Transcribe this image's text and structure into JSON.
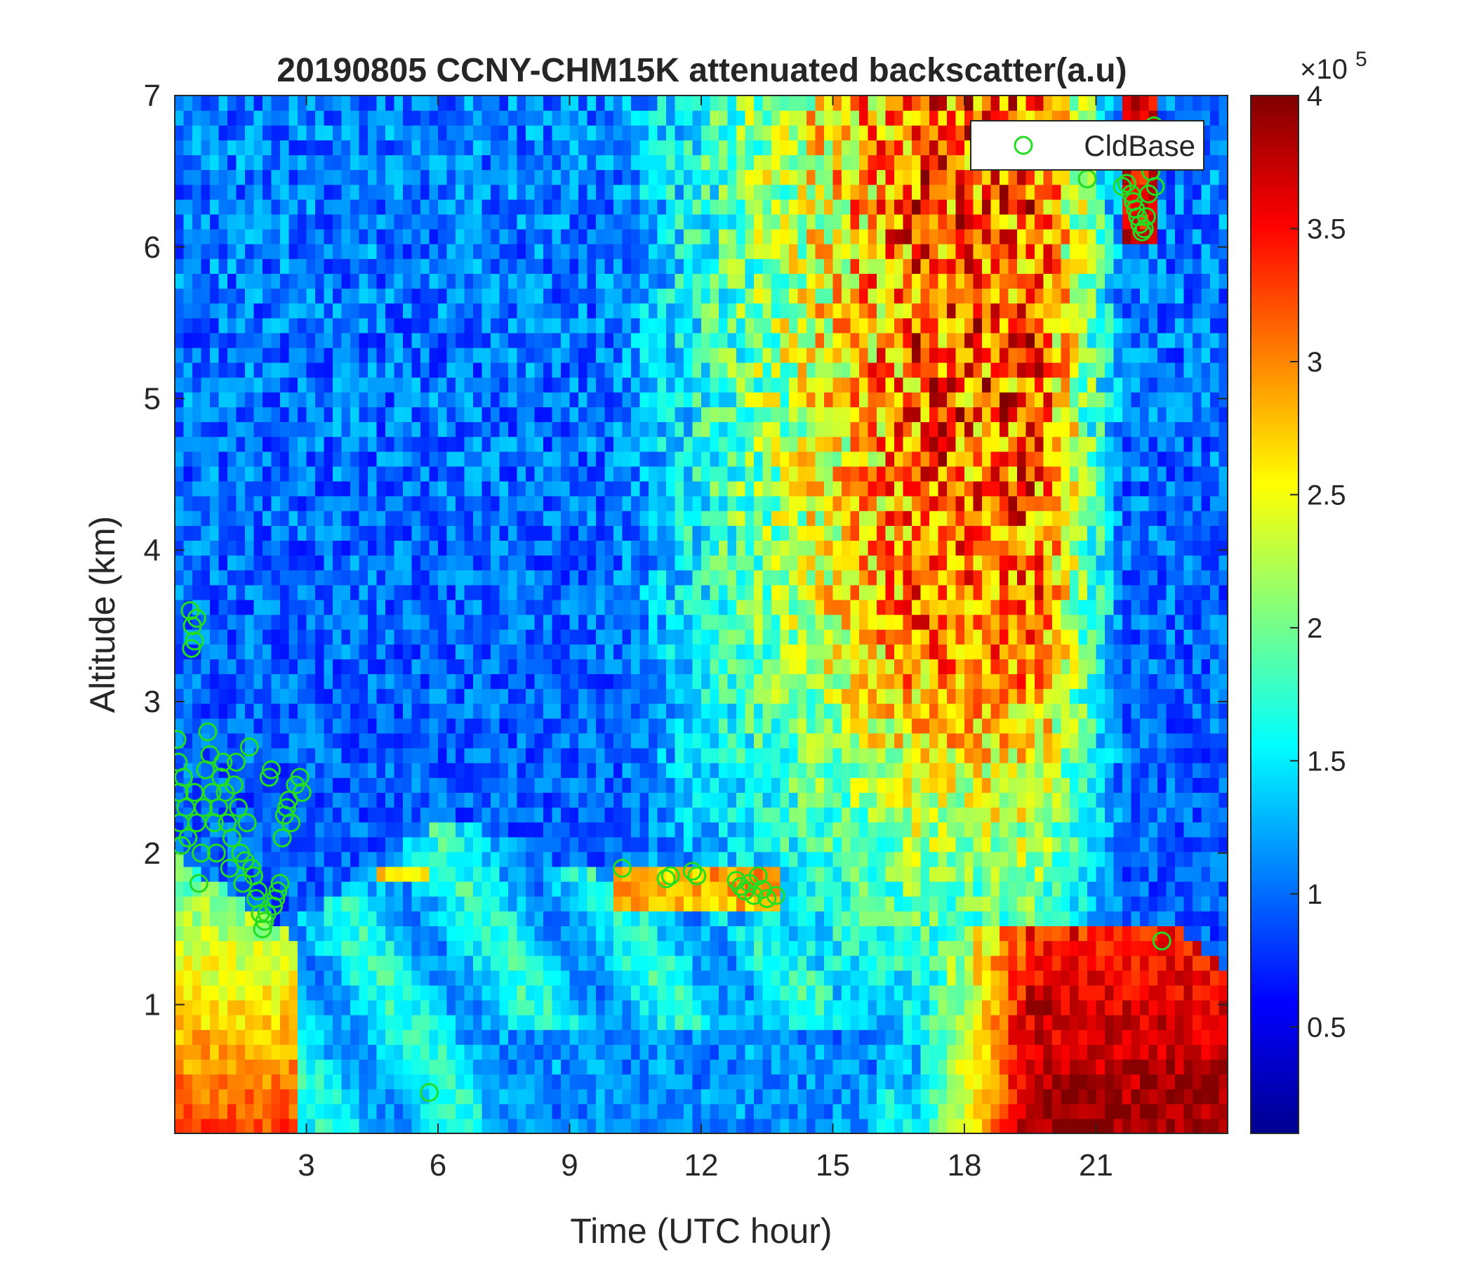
{
  "chart_data": {
    "type": "heatmap",
    "title": "20190805 CCNY-CHM15K attenuated backscatter(a.u)",
    "xlabel": "Time (UTC hour)",
    "ylabel": "Altitude (km)",
    "xlim": [
      0,
      24
    ],
    "ylim": [
      0.15,
      7
    ],
    "xticks": [
      3,
      6,
      9,
      12,
      15,
      18,
      21
    ],
    "yticks": [
      1,
      2,
      3,
      4,
      5,
      6,
      7
    ],
    "colorbar": {
      "colormap": "jet",
      "clim": [
        0.1,
        4
      ],
      "ticks": [
        0.5,
        1,
        1.5,
        2,
        2.5,
        3,
        3.5,
        4
      ],
      "exponent_label": "×10",
      "exponent": "5"
    },
    "legend": {
      "position": "top-right",
      "entries": [
        "CldBase"
      ]
    },
    "series": [
      {
        "name": "CldBase",
        "marker": "open-circle",
        "color": "#22dd22",
        "points": [
          [
            0.05,
            2.75
          ],
          [
            0.08,
            2.6
          ],
          [
            0.1,
            2.4
          ],
          [
            0.12,
            2.2
          ],
          [
            0.15,
            2.05
          ],
          [
            0.2,
            2.5
          ],
          [
            0.25,
            2.3
          ],
          [
            0.3,
            2.1
          ],
          [
            0.35,
            3.6
          ],
          [
            0.4,
            3.5
          ],
          [
            0.45,
            3.4
          ],
          [
            0.5,
            3.55
          ],
          [
            0.38,
            3.35
          ],
          [
            0.45,
            2.4
          ],
          [
            0.5,
            2.2
          ],
          [
            0.55,
            1.8
          ],
          [
            0.6,
            2.0
          ],
          [
            0.65,
            2.3
          ],
          [
            0.7,
            2.55
          ],
          [
            0.75,
            2.8
          ],
          [
            0.8,
            2.65
          ],
          [
            0.85,
            2.4
          ],
          [
            0.9,
            2.2
          ],
          [
            0.95,
            2.0
          ],
          [
            1.0,
            2.3
          ],
          [
            1.05,
            2.5
          ],
          [
            1.1,
            2.6
          ],
          [
            1.15,
            2.4
          ],
          [
            1.2,
            2.2
          ],
          [
            1.25,
            1.9
          ],
          [
            1.3,
            2.1
          ],
          [
            1.35,
            2.45
          ],
          [
            1.4,
            2.6
          ],
          [
            1.45,
            2.3
          ],
          [
            1.5,
            2.0
          ],
          [
            1.55,
            1.8
          ],
          [
            1.6,
            1.95
          ],
          [
            1.65,
            2.2
          ],
          [
            1.7,
            2.7
          ],
          [
            1.75,
            1.9
          ],
          [
            1.8,
            1.85
          ],
          [
            1.85,
            1.7
          ],
          [
            1.9,
            1.75
          ],
          [
            1.95,
            1.6
          ],
          [
            2.0,
            1.5
          ],
          [
            2.05,
            1.55
          ],
          [
            2.1,
            1.6
          ],
          [
            2.15,
            2.5
          ],
          [
            2.2,
            2.55
          ],
          [
            2.25,
            1.65
          ],
          [
            2.3,
            1.7
          ],
          [
            2.35,
            1.75
          ],
          [
            2.4,
            1.8
          ],
          [
            2.45,
            2.1
          ],
          [
            2.5,
            2.25
          ],
          [
            2.55,
            2.3
          ],
          [
            2.6,
            2.35
          ],
          [
            2.65,
            2.2
          ],
          [
            2.75,
            2.45
          ],
          [
            2.85,
            2.5
          ],
          [
            2.9,
            2.4
          ],
          [
            5.8,
            0.42
          ],
          [
            10.2,
            1.9
          ],
          [
            11.2,
            1.83
          ],
          [
            11.3,
            1.85
          ],
          [
            11.8,
            1.88
          ],
          [
            11.9,
            1.85
          ],
          [
            12.8,
            1.82
          ],
          [
            12.9,
            1.78
          ],
          [
            13.0,
            1.75
          ],
          [
            13.1,
            1.8
          ],
          [
            13.2,
            1.72
          ],
          [
            13.3,
            1.85
          ],
          [
            13.4,
            1.76
          ],
          [
            13.5,
            1.7
          ],
          [
            13.7,
            1.72
          ],
          [
            20.8,
            6.45
          ],
          [
            21.6,
            6.4
          ],
          [
            21.7,
            6.42
          ],
          [
            21.8,
            6.35
          ],
          [
            21.85,
            6.3
          ],
          [
            21.9,
            6.25
          ],
          [
            21.95,
            6.2
          ],
          [
            22.0,
            6.15
          ],
          [
            22.05,
            6.1
          ],
          [
            22.1,
            6.12
          ],
          [
            22.15,
            6.2
          ],
          [
            22.2,
            6.35
          ],
          [
            22.25,
            6.5
          ],
          [
            22.3,
            6.6
          ],
          [
            22.32,
            6.8
          ],
          [
            22.35,
            6.4
          ],
          [
            22.5,
            1.42
          ]
        ]
      }
    ]
  }
}
